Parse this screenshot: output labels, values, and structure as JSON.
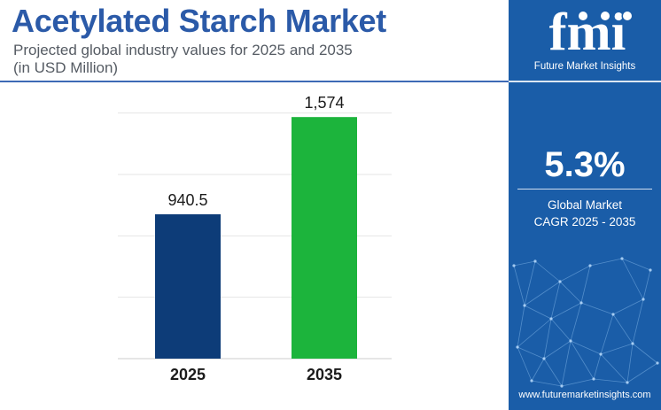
{
  "header": {
    "title": "Acetylated Starch Market",
    "subtitle_line1": "Projected global industry values for 2025 and 2035",
    "subtitle_line2": "(in USD Million)"
  },
  "chart_data": {
    "type": "bar",
    "categories": [
      "2025",
      "2035"
    ],
    "values": [
      940.5,
      1574
    ],
    "value_labels": [
      "940.5",
      "1,574"
    ],
    "bar_colors": [
      "#0d3c78",
      "#1cb43c"
    ],
    "ylim": [
      0,
      1800
    ],
    "grid": true
  },
  "sidebar": {
    "logo_letters": "fmi",
    "logo_caption": "Future Market Insights",
    "cagr_value": "5.3%",
    "cagr_label_line1": "Global Market",
    "cagr_label_line2": "CAGR 2025 - 2035",
    "website": "www.futuremarketinsights.com"
  },
  "colors": {
    "title": "#2b5aa8",
    "sidebar_bg": "#1a5da8",
    "accent_rule": "#3d6ab5"
  }
}
